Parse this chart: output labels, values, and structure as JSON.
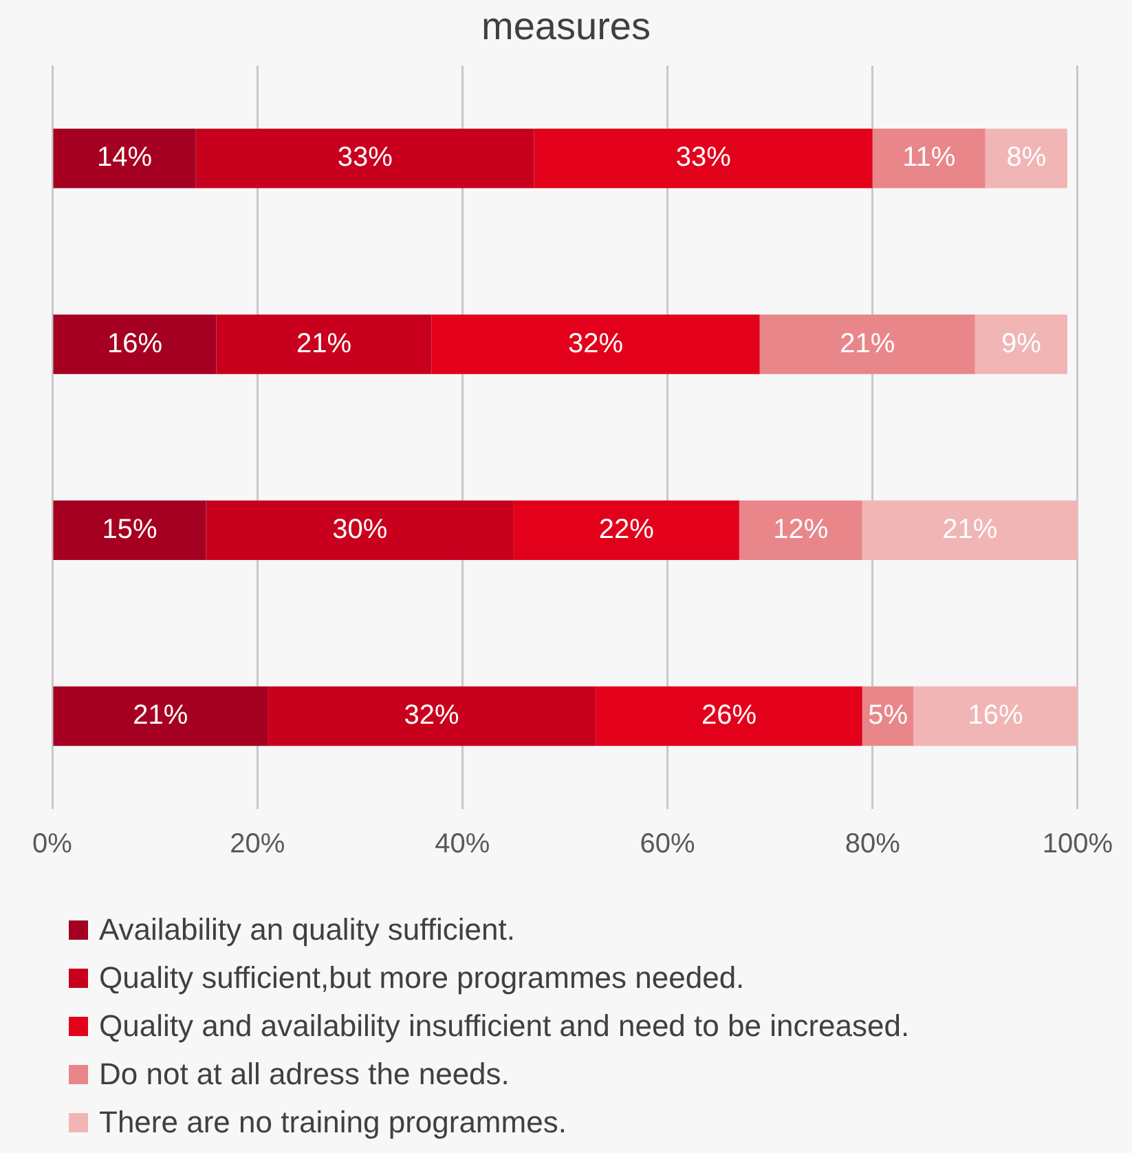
{
  "chart_data": {
    "type": "bar",
    "orientation": "horizontal",
    "stacked": true,
    "title": "measures",
    "categories": [
      null,
      null,
      null,
      null
    ],
    "series": [
      {
        "name": "Availability an quality sufficient.",
        "color": "#a50021",
        "values": [
          14,
          16,
          15,
          21
        ],
        "value_labels": [
          "14%",
          "16%",
          "15%",
          "21%"
        ]
      },
      {
        "name": "Quality sufficient,but more programmes needed.",
        "color": "#c8001e",
        "values": [
          33,
          21,
          30,
          32
        ],
        "value_labels": [
          "33%",
          "21%",
          "30%",
          "32%"
        ]
      },
      {
        "name": "Quality and availability insufficient and need to be increased.",
        "color": "#e3001b",
        "values": [
          33,
          32,
          22,
          26
        ],
        "value_labels": [
          "33%",
          "32%",
          "22%",
          "26%"
        ]
      },
      {
        "name": "Do not at all adress the needs.",
        "color": "#e9868a",
        "values": [
          11,
          21,
          12,
          5
        ],
        "value_labels": [
          "11%",
          "21%",
          "12%",
          "5%"
        ]
      },
      {
        "name": "There are no training programmes.",
        "color": "#f1b5b6",
        "values": [
          8,
          9,
          21,
          16
        ],
        "value_labels": [
          "8%",
          "9%",
          "21%",
          "16%"
        ]
      }
    ],
    "xlim": [
      0,
      100
    ],
    "xticks": [
      {
        "value": 0,
        "label": "0%"
      },
      {
        "value": 20,
        "label": "20%"
      },
      {
        "value": 40,
        "label": "40%"
      },
      {
        "value": 60,
        "label": "60%"
      },
      {
        "value": 80,
        "label": "80%"
      },
      {
        "value": 100,
        "label": "100%"
      }
    ],
    "grid": "x",
    "legend": "bottom",
    "tick_labels": "x"
  }
}
